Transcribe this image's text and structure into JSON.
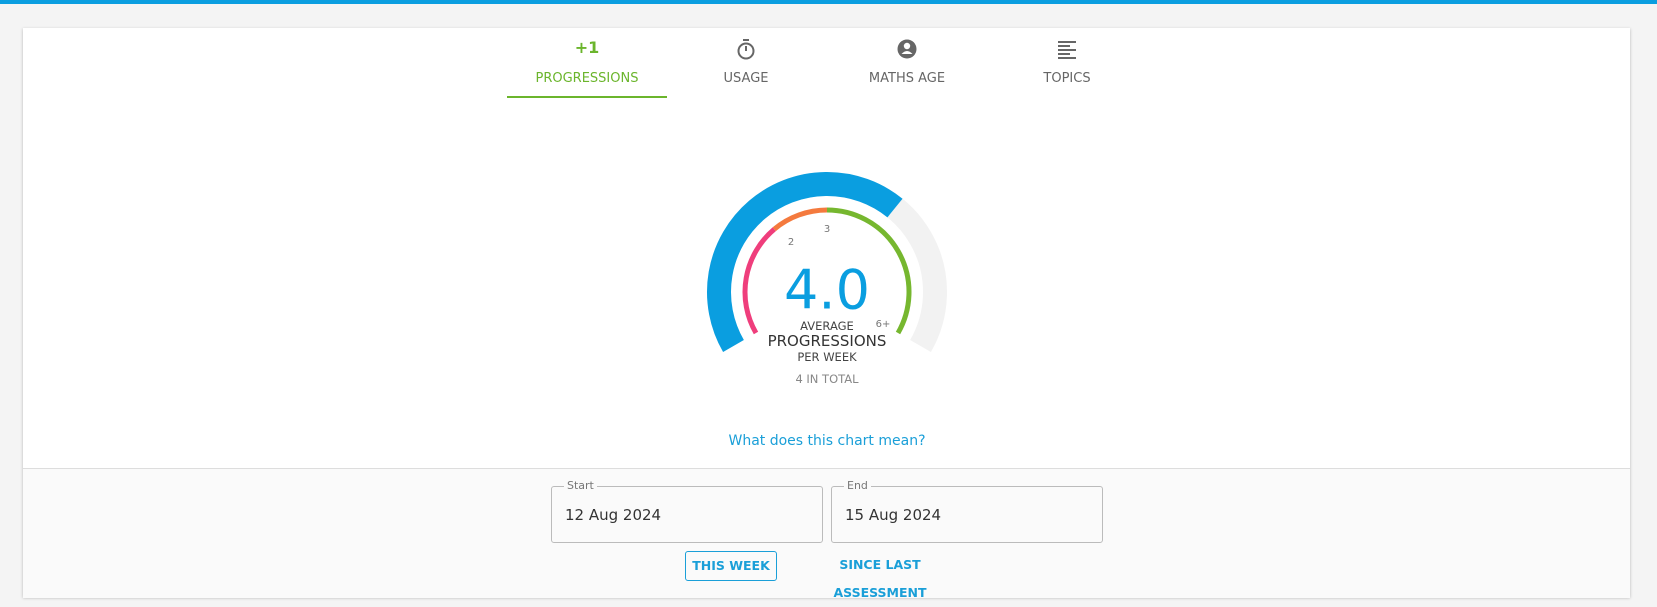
{
  "tabs": [
    {
      "icon": "+1",
      "label": "PROGRESSIONS"
    },
    {
      "label": "USAGE"
    },
    {
      "label": "MATHS AGE"
    },
    {
      "label": "TOPICS"
    }
  ],
  "gauge": {
    "value_label": "4.0",
    "scale_labels": [
      "2",
      "3",
      "6+"
    ],
    "caption_top": "AVERAGE",
    "caption_main": "PROGRESSIONS",
    "caption_bottom": "PER WEEK",
    "total": "4 IN TOTAL"
  },
  "help_link": "What does this chart mean?",
  "date_range": {
    "start_label": "Start",
    "start_value": "12 Aug 2024",
    "end_label": "End",
    "end_value": "15 Aug 2024"
  },
  "buttons": [
    "THIS WEEK",
    "SINCE LAST ASSESSMENT"
  ]
}
